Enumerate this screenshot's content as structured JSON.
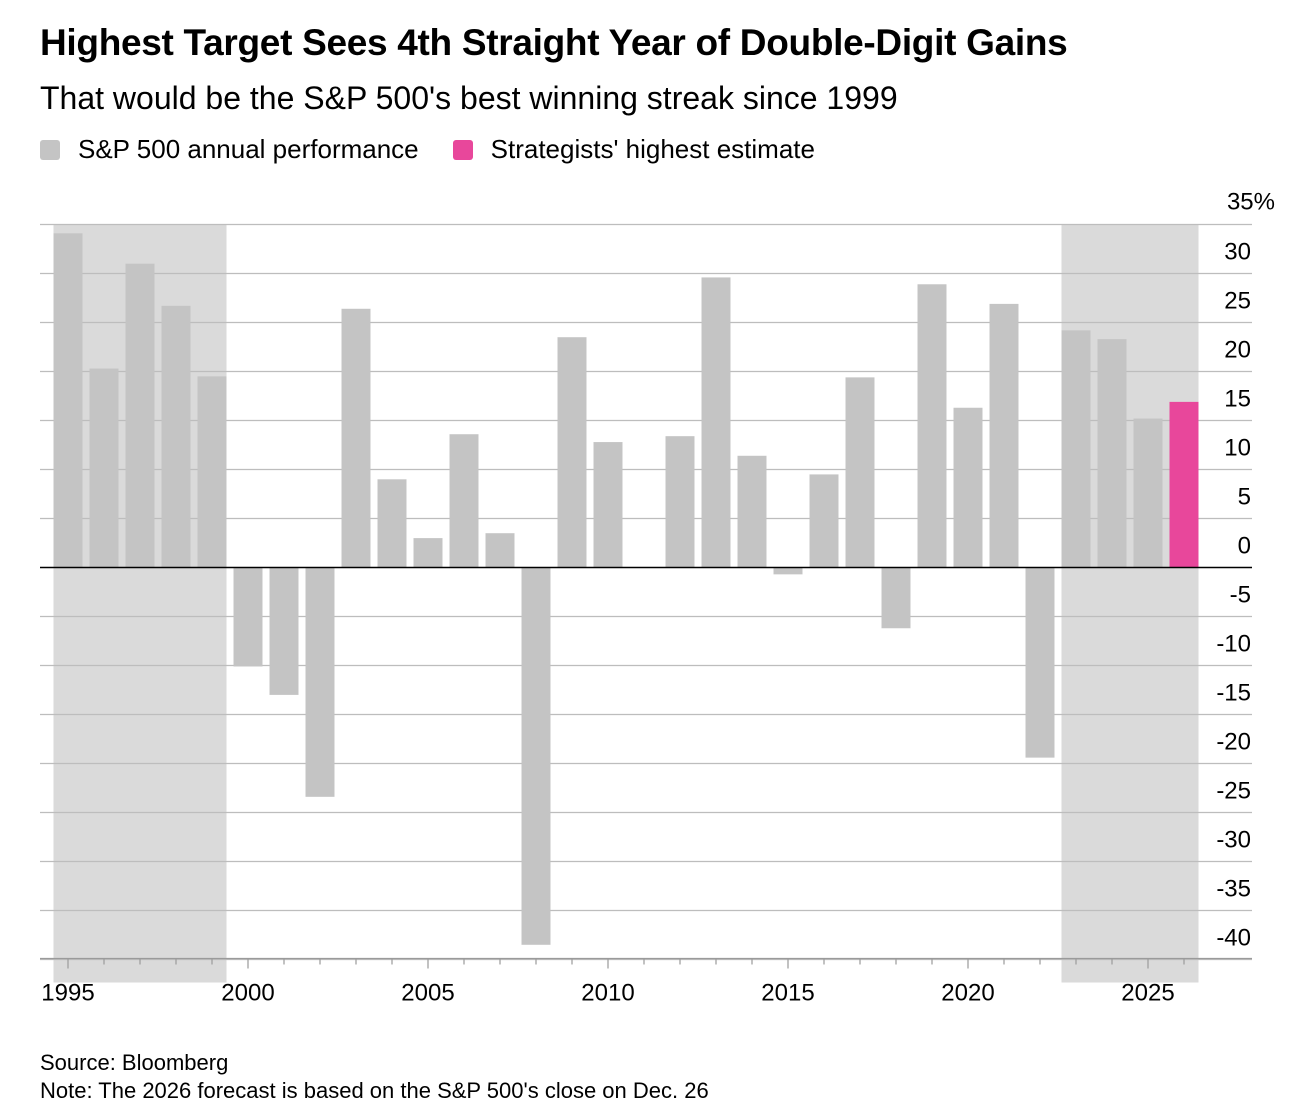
{
  "header": {
    "title": "Highest Target Sees 4th Straight Year of Double-Digit Gains",
    "subtitle": "That would be the S&P 500's best winning streak since 1999"
  },
  "legend": [
    {
      "label": "S&P 500 annual performance",
      "color": "#c4c4c4"
    },
    {
      "label": "Strategists' highest estimate",
      "color": "#e8479b"
    }
  ],
  "chart_data": {
    "type": "bar",
    "title": "Highest Target Sees 4th Straight Year of Double-Digit Gains",
    "subtitle": "That would be the S&P 500's best winning streak since 1999",
    "xlabel": "",
    "ylabel": "",
    "ylim": [
      -40,
      35
    ],
    "y_ticks": [
      35,
      30,
      25,
      20,
      15,
      10,
      5,
      0,
      -5,
      -10,
      -15,
      -20,
      -25,
      -30,
      -35,
      -40
    ],
    "y_tick_labels": [
      "35%",
      "30",
      "25",
      "20",
      "15",
      "10",
      "5",
      "0",
      "-5",
      "-10",
      "-15",
      "-20",
      "-25",
      "-30",
      "-35",
      "-40"
    ],
    "x_ticks": [
      1995,
      2000,
      2005,
      2010,
      2015,
      2020,
      2025
    ],
    "x_tick_labels": [
      "1995",
      "2000",
      "2005",
      "2010",
      "2015",
      "2020",
      "2025"
    ],
    "shaded_periods": [
      [
        1995,
        1999
      ],
      [
        2023,
        2026
      ]
    ],
    "series": [
      {
        "name": "S&P 500 annual performance",
        "color": "#c4c4c4",
        "categories": [
          1995,
          1996,
          1997,
          1998,
          1999,
          2000,
          2001,
          2002,
          2003,
          2004,
          2005,
          2006,
          2007,
          2008,
          2009,
          2010,
          2011,
          2012,
          2013,
          2014,
          2015,
          2016,
          2017,
          2018,
          2019,
          2020,
          2021,
          2022,
          2023,
          2024,
          2025
        ],
        "values": [
          34.1,
          20.3,
          31.0,
          26.7,
          19.5,
          -10.1,
          -13.0,
          -23.4,
          26.4,
          9.0,
          3.0,
          13.6,
          3.5,
          -38.5,
          23.5,
          12.8,
          0.0,
          13.4,
          29.6,
          11.4,
          -0.7,
          9.5,
          19.4,
          -6.2,
          28.9,
          16.3,
          26.9,
          -19.4,
          24.2,
          23.3,
          15.2
        ]
      },
      {
        "name": "Strategists' highest estimate",
        "color": "#e8479b",
        "categories": [
          2026
        ],
        "values": [
          16.9
        ]
      }
    ]
  },
  "footer": {
    "source": "Source: Bloomberg",
    "note": "Note: The 2026 forecast is based on the S&P 500's close on Dec. 26"
  }
}
